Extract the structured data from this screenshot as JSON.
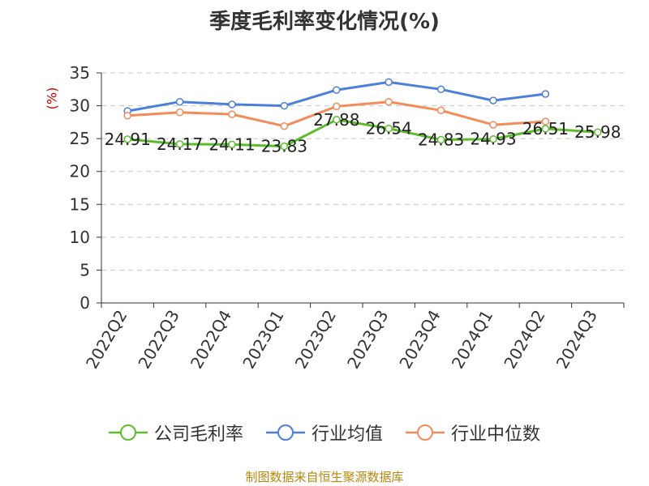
{
  "chart_data": {
    "type": "line",
    "title": "季度毛利率变化情况(%)",
    "ylabel": "(%)",
    "ylim": [
      0,
      35
    ],
    "yticks": [
      0,
      5,
      10,
      15,
      20,
      25,
      30,
      35
    ],
    "grid": true,
    "legend_position": "bottom",
    "categories": [
      "2022Q2",
      "2022Q3",
      "2022Q4",
      "2023Q1",
      "2023Q2",
      "2023Q3",
      "2023Q4",
      "2024Q1",
      "2024Q2",
      "2024Q3"
    ],
    "series": [
      {
        "name": "公司毛利率",
        "color": "#5cbd2d",
        "values": [
          24.91,
          24.17,
          24.11,
          23.83,
          27.88,
          26.54,
          24.83,
          24.93,
          26.51,
          25.98
        ],
        "labels": [
          "24.91",
          "24.17",
          "24.11",
          "23.83",
          "27.88",
          "26.54",
          "24.83",
          "24.93",
          "26.51",
          "25.98"
        ]
      },
      {
        "name": "行业均值",
        "color": "#4b7fd9",
        "values": [
          29.2,
          30.6,
          30.2,
          30.0,
          32.4,
          33.6,
          32.5,
          30.8,
          31.8,
          null
        ]
      },
      {
        "name": "行业中位数",
        "color": "#f38b5a",
        "values": [
          28.5,
          29.0,
          28.7,
          26.9,
          29.9,
          30.6,
          29.3,
          27.1,
          27.6,
          null
        ]
      }
    ]
  },
  "source": "制图数据来自恒生聚源数据库"
}
